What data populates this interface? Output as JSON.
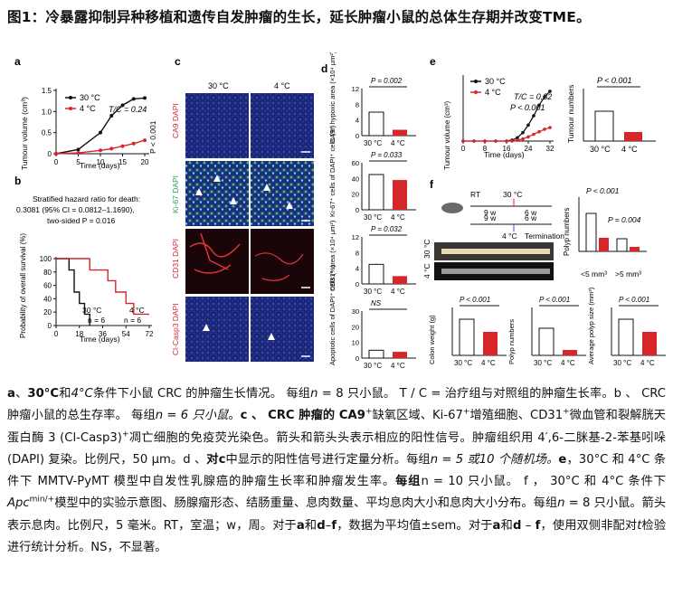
{
  "title": "图1：冷暴露抑制异种移植和遗传自发肿瘤的生长，延长肿瘤小鼠的总体生存期并改变TME。",
  "panels": {
    "a": {
      "label": "a",
      "legend": [
        "30 °C",
        "4 °C"
      ],
      "stat": "T/C = 0.24",
      "p": "P < 0.001",
      "ylabel": "Tumour volume (cm³)",
      "xlabel": "Time (days)",
      "yticks": [
        "0",
        "0.5",
        "1.0",
        "1.5"
      ],
      "xticks": [
        "0",
        "5",
        "10",
        "15",
        "20"
      ]
    },
    "b": {
      "label": "b",
      "hazard_lines": [
        "Stratified hazard ratio for death:",
        "0.3081 (95% CI = 0.0812–1.1690),",
        "two-sided P = 0.016"
      ],
      "ylabel": "Probability of overall survival (%)",
      "xlabel": "Time (days)",
      "yticks": [
        "0",
        "20",
        "40",
        "60",
        "80",
        "100"
      ],
      "xticks": [
        "0",
        "18",
        "36",
        "54",
        "72"
      ],
      "l30": "30 °C",
      "n30": "n = 6",
      "l4": "4 °C",
      "n4": "n = 6"
    },
    "c": {
      "label": "c",
      "col1": "30 °C",
      "col2": "4 °C",
      "rows": [
        "CA9 DAPI",
        "Ki-67 DAPI",
        "CD31 DAPI",
        "Cl-Casp3 DAPI"
      ]
    },
    "d": {
      "label": "d",
      "plots": [
        {
          "ylabel": "CA9⁺ hypoxic area (×10⁴ μm²)",
          "p": "P = 0.002",
          "yticks": [
            "0",
            "4",
            "8",
            "12"
          ]
        },
        {
          "ylabel": "Ki-67⁺ cells of DAPI⁺ cells (%)",
          "p": "P = 0.033",
          "yticks": [
            "0",
            "20",
            "40",
            "60"
          ]
        },
        {
          "ylabel": "CD31⁺ area (×10⁴ μm²)",
          "p": "P = 0.032",
          "yticks": [
            "0",
            "4",
            "8",
            "12"
          ]
        },
        {
          "ylabel": "Apoptotic cells of DAPI⁺ cells (%)",
          "p": "NS",
          "yticks": [
            "0",
            "10",
            "20",
            "30"
          ]
        }
      ],
      "xcats": [
        "30 °C",
        "4 °C"
      ]
    },
    "e": {
      "label": "e",
      "legend": [
        "30 °C",
        "4 °C"
      ],
      "stat": "T/C = 0.32",
      "p": "P < 0.001",
      "ylabel": "Tumour volume (cm³)",
      "xlabel": "Time (days)",
      "xticks": [
        "0",
        "8",
        "16",
        "24",
        "32"
      ],
      "yticks": [
        "0",
        "0.5",
        "1.0",
        "1.5"
      ],
      "bar_ylabel": "Tumour numbers",
      "bar_p": "P < 0.001",
      "bar_yticks": [
        "0",
        "2",
        "4",
        "6",
        "8"
      ],
      "xcats": [
        "30 °C",
        "4 °C"
      ]
    },
    "f": {
      "label": "f",
      "rt": "RT",
      "w9a": "9 w",
      "w6a": "6 w",
      "t30": "30 °C",
      "w9b": "9 w",
      "w6b": "6 w",
      "t4": "4 °C",
      "term": "Termination",
      "img30": "30 °C",
      "img4": "4 °C",
      "polyp_ylabel": "Polyp numbers",
      "polyp_p1": "P < 0.001",
      "polyp_p2": "P = 0.004",
      "size_small": "<5 mm³",
      "size_large": ">5 mm³",
      "colon": {
        "ylabel": "Colon weight (g)",
        "p": "P < 0.001"
      },
      "polyp": {
        "ylabel": "Polyp numbers",
        "p": "P < 0.001"
      },
      "avg": {
        "ylabel": "Average polyp size (mm³)",
        "p": "P < 0.001"
      },
      "xcats": [
        "30 °C",
        "4 °C"
      ]
    }
  },
  "chart_data": [
    {
      "type": "line",
      "panel": "a",
      "series": [
        {
          "name": "30 °C",
          "x": [
            0,
            5,
            10,
            12.5,
            15,
            17.5,
            20
          ],
          "y": [
            0,
            0.1,
            0.5,
            0.9,
            1.15,
            1.3,
            1.32
          ]
        },
        {
          "name": "4 °C",
          "x": [
            0,
            5,
            10,
            12.5,
            15,
            17.5,
            20
          ],
          "y": [
            0,
            0.02,
            0.08,
            0.12,
            0.18,
            0.24,
            0.32
          ]
        }
      ],
      "xlabel": "Time (days)",
      "ylabel": "Tumour volume (cm³)",
      "ylim": [
        0,
        1.5
      ]
    },
    {
      "type": "line",
      "panel": "b",
      "series": [
        {
          "name": "30 °C",
          "x": [
            0,
            10,
            14,
            18,
            22,
            26
          ],
          "y": [
            100,
            83,
            50,
            33,
            17,
            0
          ]
        },
        {
          "name": "4 °C",
          "x": [
            0,
            20,
            26,
            40,
            46,
            54,
            60,
            72
          ],
          "y": [
            100,
            100,
            83,
            67,
            50,
            33,
            17,
            17
          ]
        }
      ],
      "xlabel": "Time (days)",
      "ylabel": "Probability of overall survival (%)"
    },
    {
      "type": "line",
      "panel": "e",
      "series": [
        {
          "name": "30 °C",
          "x": [
            0,
            4,
            8,
            12,
            16,
            18,
            20,
            22,
            24,
            26,
            28,
            30,
            32
          ],
          "y": [
            0,
            0,
            0,
            0,
            0,
            0.02,
            0.08,
            0.2,
            0.38,
            0.6,
            0.85,
            1.05,
            1.18
          ]
        },
        {
          "name": "4 °C",
          "x": [
            0,
            4,
            8,
            12,
            16,
            18,
            20,
            22,
            24,
            26,
            28,
            30,
            32
          ],
          "y": [
            0,
            0,
            0,
            0,
            0,
            0,
            0.02,
            0.05,
            0.1,
            0.16,
            0.22,
            0.28,
            0.32
          ]
        }
      ],
      "xlabel": "Time (days)",
      "ylabel": "Tumour volume (cm³)"
    }
  ],
  "caption": {
    "l1_a": "a",
    "l1_b": "、",
    "l1_c": "30°C",
    "l1_d": "和",
    "l1_e": "4°C",
    "l1_f": "条件下小鼠 CRC 的肿瘤生长情况。 每组",
    "l1_g": "n",
    "l1_h": " = 8 只小鼠。 T / C = 治疗组与对照组的肿瘤生",
    "l2": "长率。b 、 CRC 肿瘤小鼠的总生存率。 每组",
    "l2_n": "n = 6 只小鼠",
    "l2_c": "。",
    "l2_d": "c 、 CRC 肿瘤的 CA9",
    "l2_e": "缺氧区域、Ki-67",
    "l2_f": "增殖",
    "l3": "细胞、CD31",
    "l3_b": "微血管和裂解胱天蛋白酶 3 (Cl-Casp3)",
    "l3_c": "凋亡细胞的免疫荧光染色。箭头和箭头头表示相应",
    "l4": "的阳性信号。肿瘤组织用 4′,6-二脒基-2-苯基吲哚 (DAPI) 复染。比例尺，50 μm。d 、",
    "l4_b": "对c",
    "l4_c": "中显示的阳性",
    "l5": "信号进行定量分析。每组",
    "l5_b": "n = 5 或10 个随机场。",
    "l5_c": "e",
    "l5_d": "，30°C 和 4°C 条件下 MMTV-PyMT 模型中自发性乳腺",
    "l6": "癌的肿瘤生长率和肿瘤发生率。",
    "l6_b": "每组",
    "l6_c": "n = 10 只小鼠。 f ， 30°C 和 4°C 条件下",
    "l6_d": "Apc",
    "l6_e": "min/+",
    "l6_f": "模型中的实验示意",
    "l7": "图、肠腺瘤形态、结肠重量、息肉数量、平均息肉大小和息肉大小分布。每组",
    "l7_b": "n",
    "l7_c": " = 8 只小鼠。箭头表示息",
    "l8": "肉。比例尺，5 毫米。RT，室温；w，周。对于",
    "l8_b": "a",
    "l8_c": "和",
    "l8_d": "d",
    "l8_e": "–",
    "l8_f": "f",
    "l8_g": "，数据为平均值±sem。对于",
    "l8_h": "a",
    "l8_i": "和",
    "l8_j": "d",
    "l8_k": " – ",
    "l8_l": "f",
    "l8_m": "，使用双侧",
    "l9": "非配对",
    "l9_b": "t",
    "l9_c": "检验进行统计分析。NS，不显著。",
    "sup_plus": "+"
  },
  "colors": {
    "red": "#d7262b",
    "black": "#111111",
    "blue_bg": "#1c2b7a",
    "green": "#3fbf6a"
  }
}
